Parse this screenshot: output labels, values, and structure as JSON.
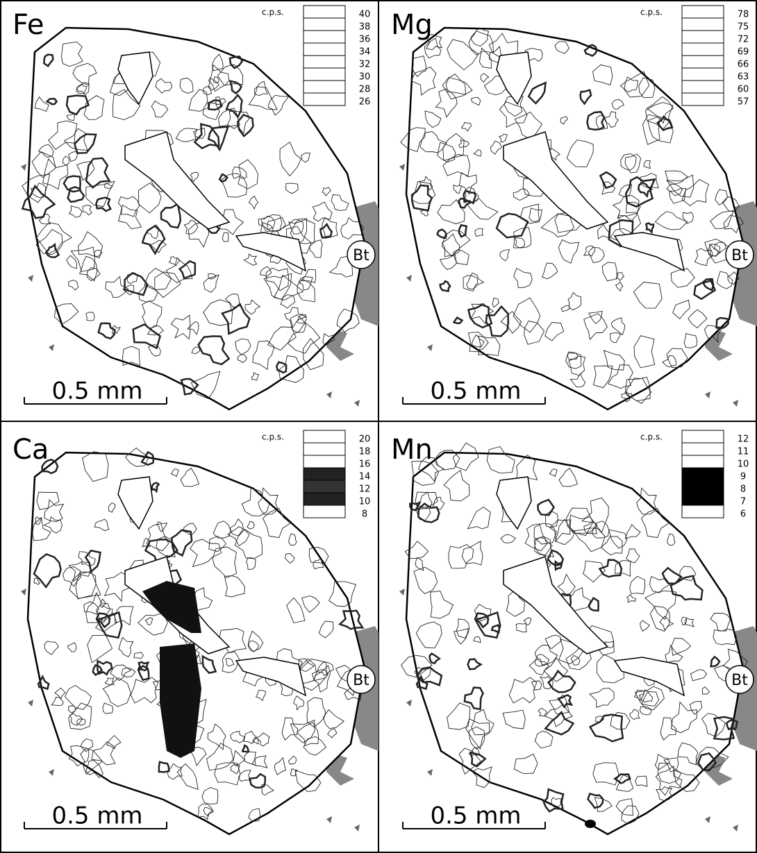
{
  "panels": [
    {
      "element": "Fe",
      "units": "c.p.s.",
      "levels": [
        40,
        38,
        36,
        34,
        32,
        30,
        28,
        26
      ],
      "level_fills": [
        "#fff",
        "#fff",
        "#fff",
        "#fff",
        "#fff",
        "#fff",
        "#fff",
        "#fff"
      ],
      "scale_bar": "0.5 mm",
      "mineral_label": "Bt"
    },
    {
      "element": "Mg",
      "units": "c.p.s.",
      "levels": [
        78,
        75,
        72,
        69,
        66,
        63,
        60,
        57
      ],
      "level_fills": [
        "#fff",
        "#fff",
        "#fff",
        "#fff",
        "#fff",
        "#fff",
        "#fff",
        "#fff"
      ],
      "scale_bar": "0.5 mm",
      "mineral_label": "Bt"
    },
    {
      "element": "Ca",
      "units": "c.p.s.",
      "levels": [
        20,
        18,
        16,
        14,
        12,
        10,
        8
      ],
      "level_fills": [
        "#fff",
        "#fff",
        "#fff",
        "#222",
        "#333",
        "#222",
        "#fff"
      ],
      "scale_bar": "0.5 mm",
      "mineral_label": "Bt"
    },
    {
      "element": "Mn",
      "units": "c.p.s.",
      "levels": [
        12,
        11,
        10,
        9,
        8,
        7,
        6
      ],
      "level_fills": [
        "#fff",
        "#fff",
        "#fff",
        "#000",
        "#000",
        "#000",
        "#fff"
      ],
      "scale_bar": "0.5 mm",
      "mineral_label": "Bt"
    }
  ]
}
